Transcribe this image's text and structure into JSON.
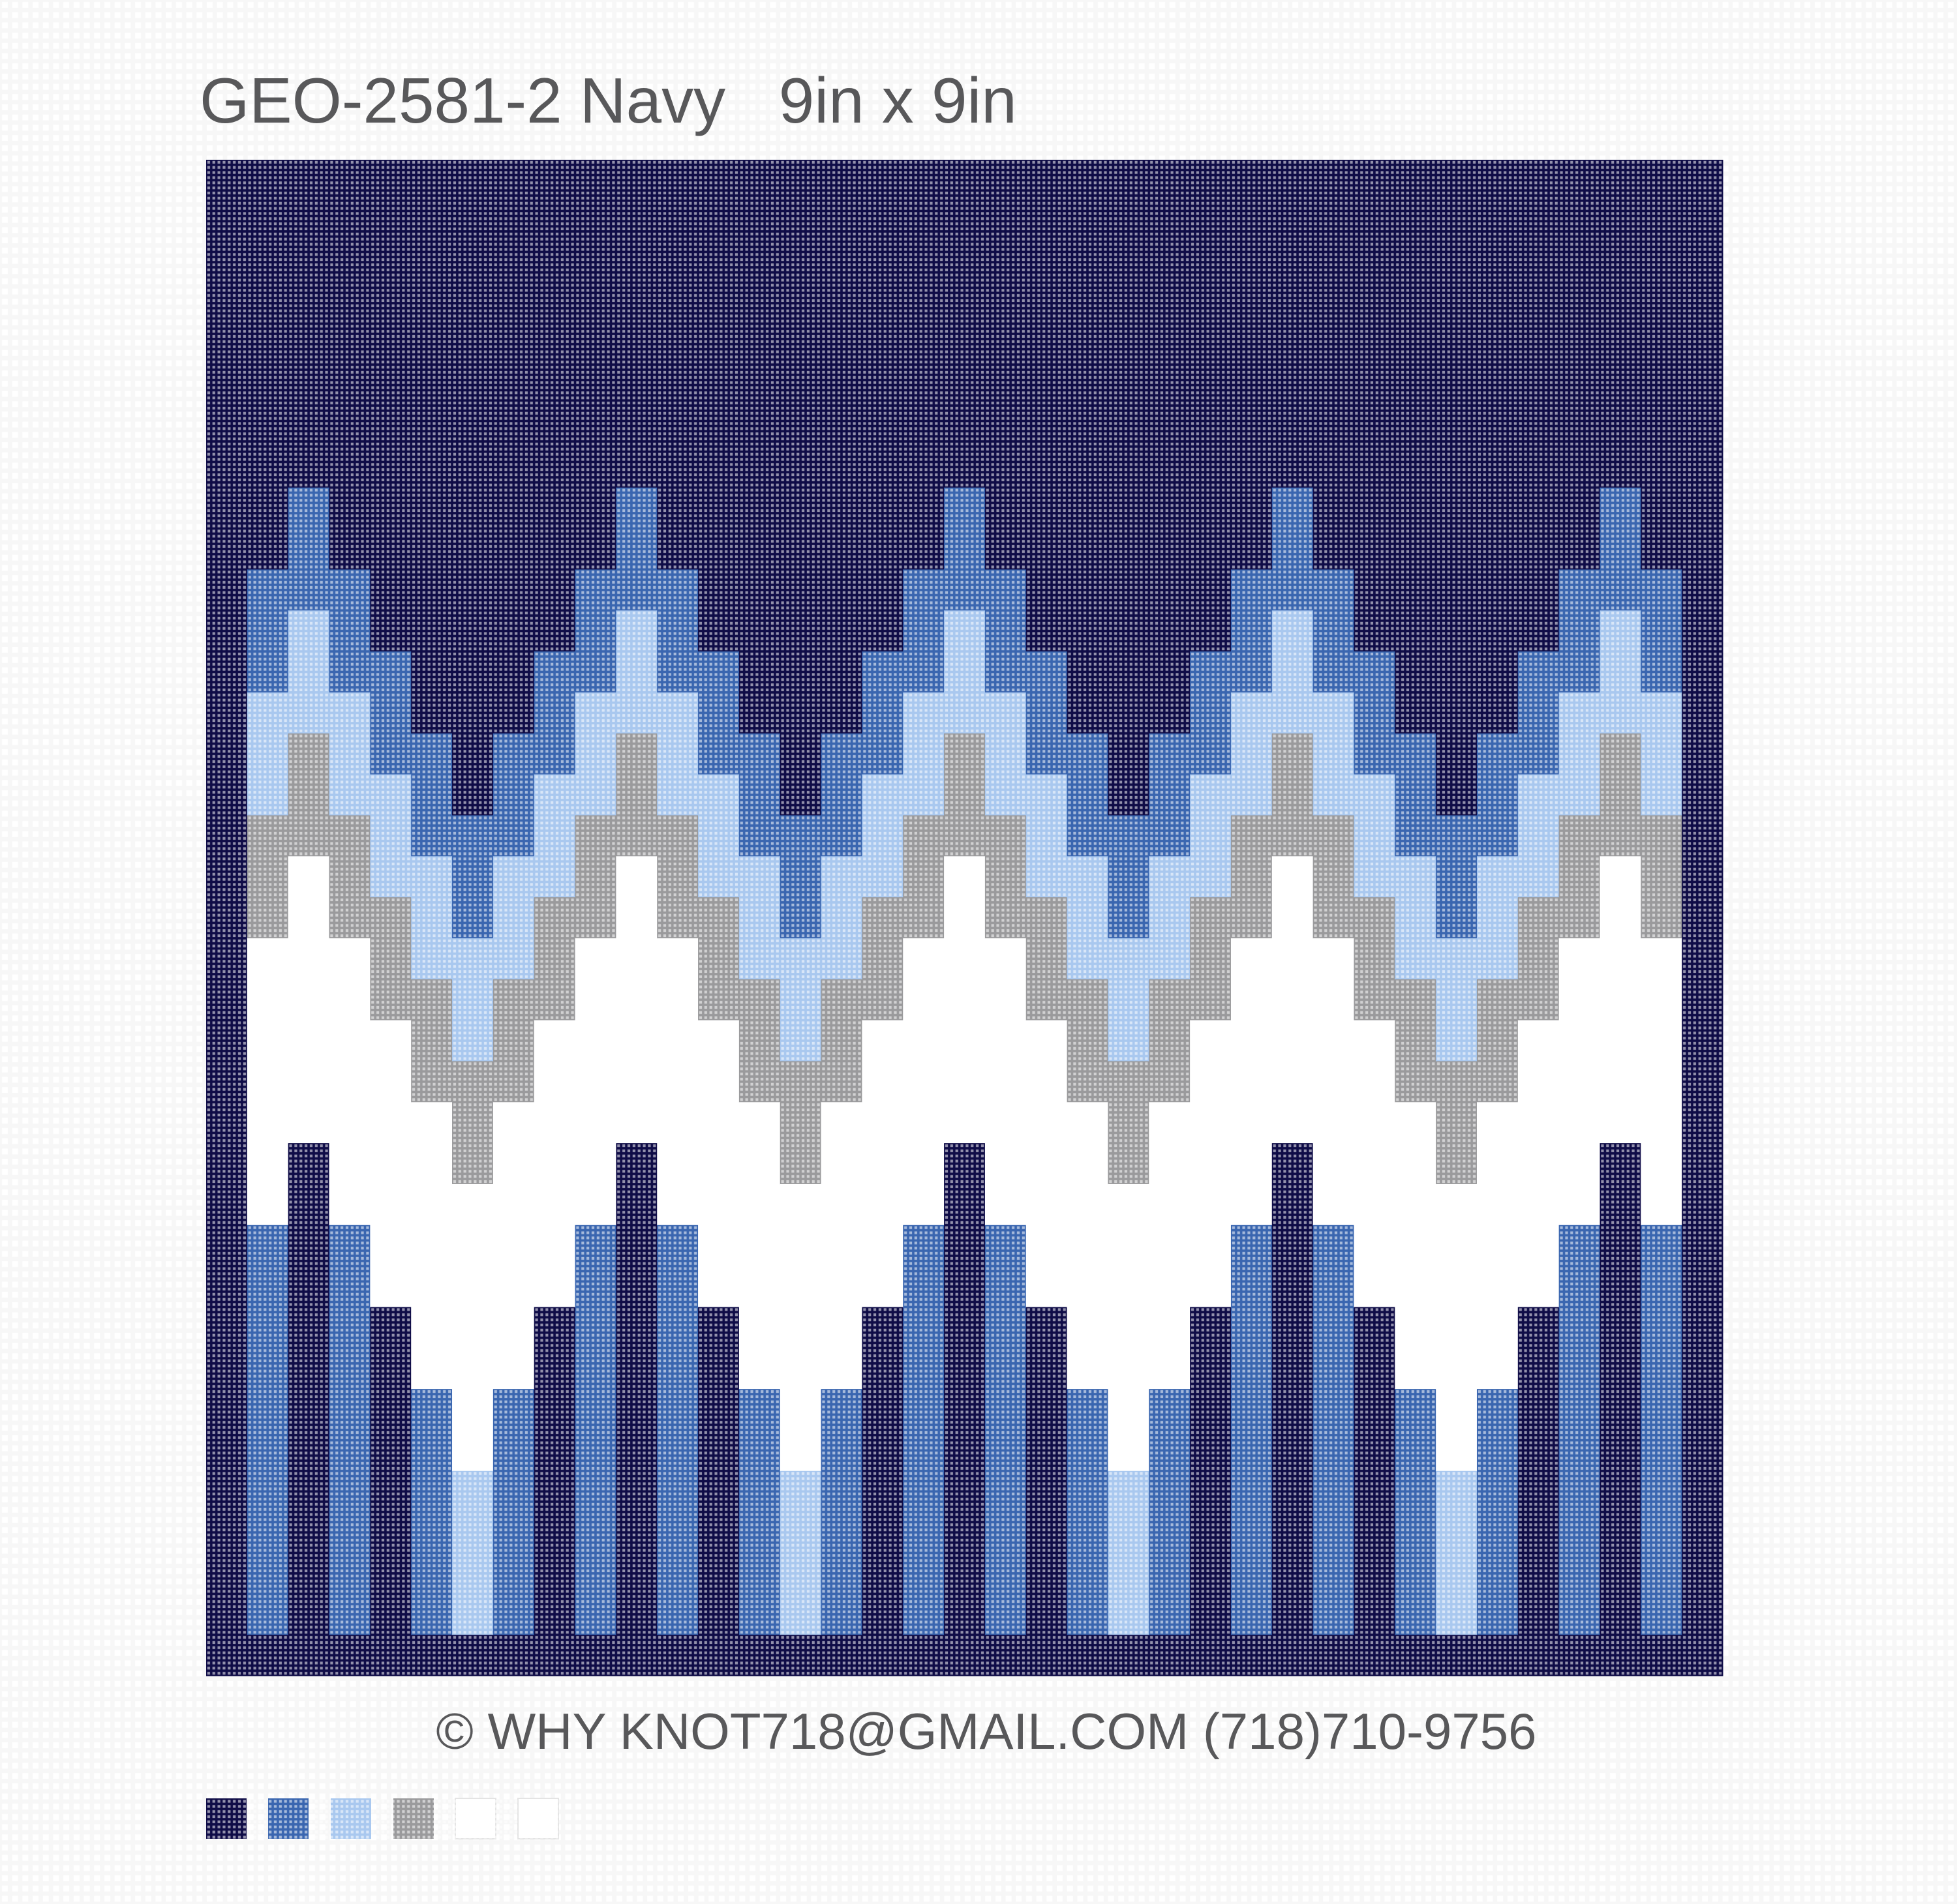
{
  "header": {
    "title": "GEO-2581-2 Navy   9in x 9in"
  },
  "footer": {
    "copyright": "© WHY KNOT718@GMAIL.COM (718)710-9756"
  }
}
